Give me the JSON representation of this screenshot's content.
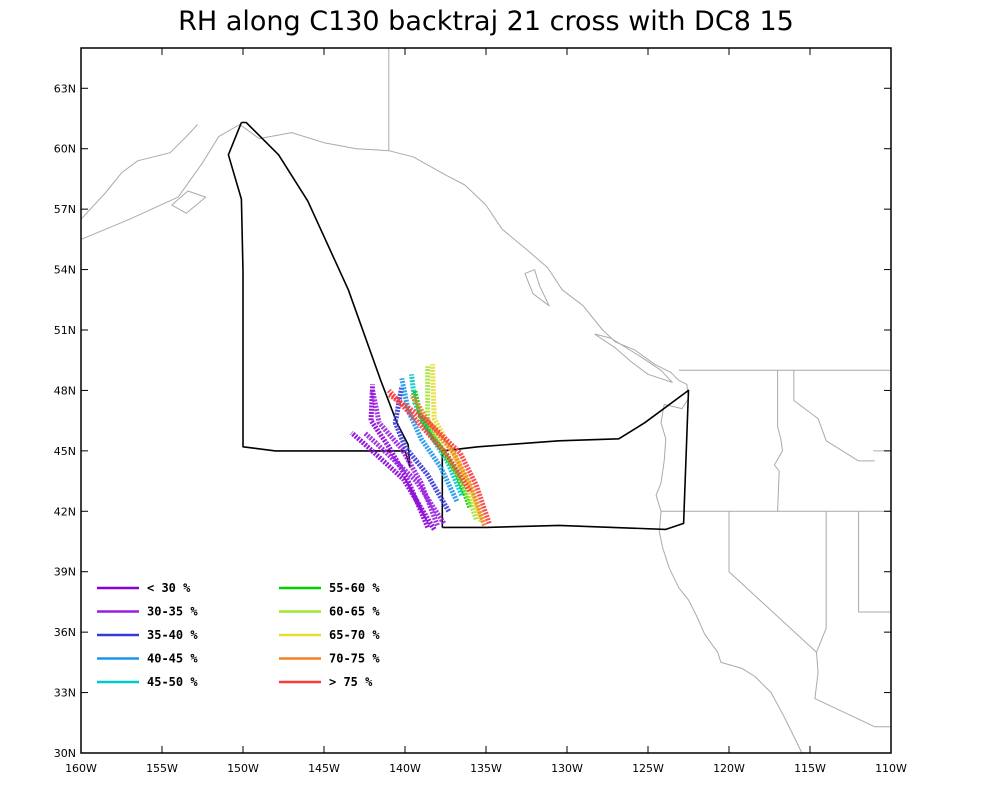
{
  "title": "RH along C130 backtraj 21 cross with DC8 15",
  "map": {
    "lon_range": [
      -160,
      -110
    ],
    "lat_range": [
      30,
      65
    ],
    "x_ticks": [
      {
        "value": -160,
        "label": "160W"
      },
      {
        "value": -155,
        "label": "155W"
      },
      {
        "value": -150,
        "label": "150W"
      },
      {
        "value": -145,
        "label": "145W"
      },
      {
        "value": -140,
        "label": "140W"
      },
      {
        "value": -135,
        "label": "135W"
      },
      {
        "value": -130,
        "label": "130W"
      },
      {
        "value": -125,
        "label": "125W"
      },
      {
        "value": -120,
        "label": "120W"
      },
      {
        "value": -115,
        "label": "115W"
      },
      {
        "value": -110,
        "label": "110W"
      }
    ],
    "y_ticks": [
      {
        "value": 30,
        "label": "30N"
      },
      {
        "value": 33,
        "label": "33N"
      },
      {
        "value": 36,
        "label": "36N"
      },
      {
        "value": 39,
        "label": "39N"
      },
      {
        "value": 42,
        "label": "42N"
      },
      {
        "value": 45,
        "label": "45N"
      },
      {
        "value": 48,
        "label": "48N"
      },
      {
        "value": 51,
        "label": "51N"
      },
      {
        "value": 54,
        "label": "54N"
      },
      {
        "value": 57,
        "label": "57N"
      },
      {
        "value": 60,
        "label": "60N"
      },
      {
        "value": 63,
        "label": "63N"
      }
    ],
    "coastline_color": "#aaaaaa",
    "flight_track_color": "#000000",
    "flight_track": [
      [
        -150.1,
        61.3
      ],
      [
        -150.9,
        59.7
      ],
      [
        -150.1,
        57.5
      ],
      [
        -150.0,
        53.9
      ],
      [
        -150.0,
        45.2
      ],
      [
        -148.0,
        45.0
      ],
      [
        -140.0,
        45.0
      ],
      [
        -139.7,
        44.2
      ],
      [
        -139.8,
        45.3
      ],
      [
        -140.5,
        46.4
      ],
      [
        -141.5,
        48.5
      ],
      [
        -143.5,
        53.0
      ],
      [
        -146.0,
        57.4
      ],
      [
        -147.8,
        59.7
      ],
      [
        -149.8,
        61.3
      ],
      [
        -150.1,
        61.3
      ]
    ],
    "flight_track_2": [
      [
        -137.7,
        41.2
      ],
      [
        -137.7,
        45.0
      ],
      [
        -135.5,
        45.2
      ],
      [
        -130.5,
        45.5
      ],
      [
        -126.8,
        45.6
      ],
      [
        -125.2,
        46.4
      ],
      [
        -122.5,
        48.0
      ],
      [
        -122.8,
        41.4
      ],
      [
        -123.9,
        41.1
      ],
      [
        -130.5,
        41.3
      ],
      [
        -135.0,
        41.2
      ],
      [
        -137.7,
        41.2
      ]
    ]
  },
  "chart_data": {
    "type": "map_trajectories",
    "title": "RH along C130 backtraj 21 cross with DC8 15",
    "legend": [
      {
        "label": "< 30 %",
        "color": "#8a00d6"
      },
      {
        "label": "30-35 %",
        "color": "#9a1ee0"
      },
      {
        "label": "35-40 %",
        "color": "#3838d8"
      },
      {
        "label": "40-45 %",
        "color": "#1e96e8"
      },
      {
        "label": "45-50 %",
        "color": "#00c8c8"
      },
      {
        "label": "55-60 %",
        "color": "#00d000"
      },
      {
        "label": "60-65 %",
        "color": "#a0e632"
      },
      {
        "label": "65-70 %",
        "color": "#e6dc32"
      },
      {
        "label": "70-75 %",
        "color": "#f08228"
      },
      {
        "label": "> 75 %",
        "color": "#fa3c3c"
      }
    ],
    "trajectories": [
      {
        "color": "#8a00d6",
        "points": [
          [
            -138.6,
            41.2
          ],
          [
            -139.8,
            43.5
          ],
          [
            -141.0,
            45.2
          ],
          [
            -142.1,
            46.5
          ],
          [
            -142.0,
            48.3
          ]
        ]
      },
      {
        "color": "#9a1ee0",
        "points": [
          [
            -138.0,
            41.3
          ],
          [
            -139.0,
            43.4
          ],
          [
            -140.2,
            45.1
          ],
          [
            -141.6,
            46.4
          ],
          [
            -142.0,
            48.0
          ]
        ]
      },
      {
        "color": "#8a00d6",
        "points": [
          [
            -138.2,
            41.1
          ],
          [
            -140.1,
            43.6
          ],
          [
            -142.3,
            45.2
          ],
          [
            -143.3,
            45.9
          ]
        ]
      },
      {
        "color": "#9a1ee0",
        "points": [
          [
            -137.6,
            41.4
          ],
          [
            -139.3,
            43.5
          ],
          [
            -141.8,
            45.4
          ],
          [
            -142.5,
            45.9
          ]
        ]
      },
      {
        "color": "#3838d8",
        "points": [
          [
            -137.3,
            42.0
          ],
          [
            -138.6,
            43.8
          ],
          [
            -140.0,
            45.2
          ],
          [
            -140.6,
            46.4
          ],
          [
            -140.2,
            48.2
          ]
        ]
      },
      {
        "color": "#1e96e8",
        "points": [
          [
            -136.8,
            42.5
          ],
          [
            -137.8,
            44.2
          ],
          [
            -139.0,
            45.6
          ],
          [
            -139.8,
            47.0
          ],
          [
            -140.2,
            48.6
          ]
        ]
      },
      {
        "color": "#00c8c8",
        "points": [
          [
            -136.5,
            42.8
          ],
          [
            -137.4,
            44.5
          ],
          [
            -138.6,
            46.0
          ],
          [
            -139.4,
            47.4
          ],
          [
            -139.6,
            48.8
          ]
        ]
      },
      {
        "color": "#00d000",
        "points": [
          [
            -136.0,
            42.2
          ],
          [
            -136.8,
            43.9
          ],
          [
            -138.0,
            45.4
          ],
          [
            -139.0,
            46.6
          ],
          [
            -139.4,
            48.0
          ]
        ]
      },
      {
        "color": "#a0e632",
        "points": [
          [
            -135.6,
            41.6
          ],
          [
            -136.4,
            43.4
          ],
          [
            -137.6,
            45.0
          ],
          [
            -138.6,
            46.5
          ],
          [
            -138.6,
            49.2
          ]
        ]
      },
      {
        "color": "#e6dc32",
        "points": [
          [
            -135.3,
            41.5
          ],
          [
            -136.1,
            43.4
          ],
          [
            -137.1,
            45.0
          ],
          [
            -138.2,
            46.6
          ],
          [
            -138.3,
            49.3
          ]
        ]
      },
      {
        "color": "#f08228",
        "points": [
          [
            -135.1,
            41.3
          ],
          [
            -135.9,
            43.2
          ],
          [
            -137.0,
            44.9
          ],
          [
            -138.6,
            46.5
          ],
          [
            -139.6,
            47.8
          ]
        ]
      },
      {
        "color": "#fa3c3c",
        "points": [
          [
            -134.8,
            41.4
          ],
          [
            -135.6,
            43.3
          ],
          [
            -136.6,
            44.9
          ],
          [
            -138.8,
            46.6
          ],
          [
            -141.0,
            47.8
          ]
        ]
      },
      {
        "color": "#fa3c3c",
        "points": [
          [
            -136.0,
            43.0
          ],
          [
            -137.4,
            44.8
          ],
          [
            -139.4,
            46.6
          ],
          [
            -141.0,
            48.0
          ]
        ]
      }
    ]
  }
}
